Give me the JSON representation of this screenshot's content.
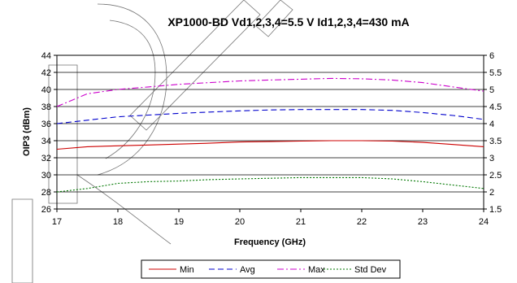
{
  "chart_data": {
    "type": "line",
    "title": "XP1000-BD Vd1,2,3,4=5.5 V Id1,2,3,4=430 mA",
    "xlabel": "Frequency (GHz)",
    "ylabel": "OIP3 (dBm)",
    "xlim": [
      17,
      24
    ],
    "ylim": [
      26,
      44
    ],
    "y2lim": [
      1.5,
      6
    ],
    "x_ticks": [
      "17",
      "18",
      "19",
      "20",
      "21",
      "22",
      "23",
      "24"
    ],
    "y_ticks": [
      "26",
      "28",
      "30",
      "32",
      "34",
      "36",
      "38",
      "40",
      "42",
      "44"
    ],
    "y2_ticks": [
      "1.5",
      "2",
      "2.5",
      "3",
      "3.5",
      "4",
      "4.5",
      "5",
      "5.5",
      "6"
    ],
    "grid": "horizontal",
    "legend_position": "bottom",
    "x": [
      17,
      17.5,
      18,
      18.5,
      19,
      19.5,
      20,
      20.5,
      21,
      21.5,
      22,
      22.5,
      23,
      23.5,
      24
    ],
    "series": [
      {
        "name": "Min",
        "axis": "left",
        "color": "#cc0000",
        "dash": "solid",
        "values": [
          33.0,
          33.3,
          33.4,
          33.5,
          33.6,
          33.7,
          33.85,
          33.9,
          33.95,
          34.0,
          34.0,
          33.95,
          33.8,
          33.55,
          33.3
        ]
      },
      {
        "name": "Avg",
        "axis": "left",
        "color": "#0000cc",
        "dash": "dashed",
        "values": [
          36.0,
          36.4,
          36.8,
          37.0,
          37.2,
          37.35,
          37.5,
          37.6,
          37.65,
          37.65,
          37.65,
          37.55,
          37.3,
          36.95,
          36.5
        ]
      },
      {
        "name": "Max",
        "axis": "left",
        "color": "#cc00cc",
        "dash": "dash-dot",
        "values": [
          38.0,
          39.5,
          40.0,
          40.3,
          40.6,
          40.8,
          41.0,
          41.1,
          41.2,
          41.3,
          41.25,
          41.1,
          40.8,
          40.3,
          39.8
        ]
      },
      {
        "name": "Std Dev",
        "axis": "right",
        "color": "#007700",
        "dash": "dotted",
        "values": [
          2.0,
          2.1,
          2.25,
          2.3,
          2.32,
          2.36,
          2.38,
          2.4,
          2.42,
          2.42,
          2.42,
          2.38,
          2.3,
          2.2,
          2.1
        ]
      }
    ]
  }
}
